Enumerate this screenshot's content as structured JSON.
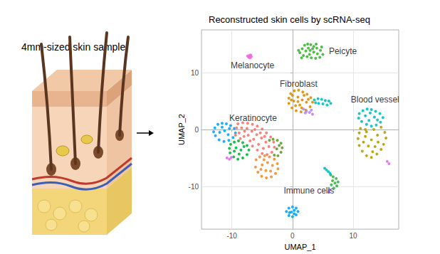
{
  "sample_label": "4mm-sized skin sample",
  "chart_data": {
    "type": "scatter",
    "title": "Reconstructed skin cells by scRNA-seq",
    "x_label": "UMAP_1",
    "y_label": "UMAP_2",
    "xlim": [
      -15,
      17.5
    ],
    "ylim": [
      -17.5,
      17.5
    ],
    "xticks": [
      -10,
      0,
      10
    ],
    "yticks": [
      -10,
      0,
      10
    ],
    "grid": true,
    "marker": "circle",
    "series": [
      {
        "color": "#3DB535",
        "values": [
          [
            1.2,
            13.5
          ],
          [
            1.6,
            14.2
          ],
          [
            2.0,
            14.8
          ],
          [
            2.5,
            15.0
          ],
          [
            3.0,
            14.9
          ],
          [
            3.5,
            14.6
          ],
          [
            4.0,
            14.3
          ],
          [
            4.6,
            13.9
          ],
          [
            5.0,
            13.2
          ],
          [
            4.5,
            12.7
          ],
          [
            3.8,
            12.5
          ],
          [
            3.1,
            12.6
          ],
          [
            2.4,
            12.8
          ],
          [
            1.8,
            13.0
          ],
          [
            2.2,
            13.8
          ],
          [
            2.9,
            13.9
          ],
          [
            3.5,
            13.6
          ],
          [
            4.1,
            13.3
          ],
          [
            2.6,
            14.3
          ],
          [
            3.3,
            14.2
          ],
          [
            1.5,
            12.6
          ],
          [
            4.8,
            14.5
          ],
          [
            3.9,
            15.0
          ],
          [
            2.8,
            13.2
          ],
          [
            1.0,
            13.9
          ]
        ]
      },
      {
        "color": "#F564E3",
        "values": [
          [
            -7.4,
            12.9
          ],
          [
            -7.1,
            13.0
          ],
          [
            -6.8,
            12.8
          ],
          [
            -7.2,
            12.7
          ],
          [
            -6.9,
            13.1
          ],
          [
            -7.0,
            12.6
          ]
        ]
      },
      {
        "color": "#D89000",
        "values": [
          [
            -0.6,
            5.5
          ],
          [
            -0.3,
            6.3
          ],
          [
            0.3,
            6.8
          ],
          [
            1.0,
            6.9
          ],
          [
            1.7,
            6.6
          ],
          [
            2.4,
            6.2
          ],
          [
            3.0,
            5.6
          ],
          [
            3.3,
            4.8
          ],
          [
            2.9,
            4.0
          ],
          [
            2.2,
            3.4
          ],
          [
            1.4,
            3.1
          ],
          [
            0.6,
            3.3
          ],
          [
            -0.1,
            3.8
          ],
          [
            -0.6,
            4.6
          ],
          [
            0.2,
            5.0
          ],
          [
            0.9,
            5.7
          ],
          [
            1.6,
            5.2
          ],
          [
            2.3,
            4.8
          ],
          [
            1.2,
            4.3
          ],
          [
            0.5,
            4.2
          ],
          [
            1.9,
            6.0
          ],
          [
            0.0,
            6.0
          ],
          [
            2.6,
            5.3
          ],
          [
            1.5,
            3.8
          ],
          [
            0.9,
            4.9
          ],
          [
            -0.2,
            5.2
          ]
        ]
      },
      {
        "color": "#00BFC4",
        "values": [
          [
            3.6,
            5.2
          ],
          [
            4.2,
            5.4
          ],
          [
            4.8,
            5.3
          ],
          [
            5.4,
            5.1
          ],
          [
            6.0,
            5.0
          ],
          [
            6.3,
            4.6
          ],
          [
            5.7,
            4.3
          ],
          [
            5.0,
            4.5
          ],
          [
            4.3,
            4.6
          ],
          [
            3.8,
            4.7
          ]
        ]
      },
      {
        "color": "#B983FF",
        "values": [
          [
            1.8,
            3.6
          ],
          [
            2.3,
            3.2
          ],
          [
            2.8,
            3.0
          ],
          [
            3.3,
            2.7
          ],
          [
            2.1,
            2.9
          ],
          [
            3.1,
            3.4
          ]
        ]
      },
      {
        "color": "#00BFC4",
        "values": [
          [
            11.0,
            2.8
          ],
          [
            11.6,
            3.3
          ],
          [
            12.3,
            3.6
          ],
          [
            13.0,
            3.5
          ],
          [
            13.7,
            3.2
          ],
          [
            14.4,
            2.8
          ],
          [
            14.9,
            2.1
          ],
          [
            14.5,
            1.3
          ],
          [
            13.8,
            0.8
          ],
          [
            13.0,
            0.6
          ],
          [
            12.2,
            0.9
          ],
          [
            11.4,
            1.4
          ],
          [
            10.9,
            2.0
          ],
          [
            12.0,
            2.4
          ],
          [
            12.8,
            2.9
          ],
          [
            13.5,
            2.2
          ],
          [
            12.6,
            1.6
          ],
          [
            14.0,
            1.7
          ]
        ]
      },
      {
        "color": "#B79F00",
        "values": [
          [
            11.2,
            0.2
          ],
          [
            12.0,
            0.0
          ],
          [
            13.4,
            0.0
          ],
          [
            14.6,
            0.4
          ],
          [
            15.2,
            -0.5
          ],
          [
            15.4,
            -1.5
          ],
          [
            15.0,
            -2.6
          ],
          [
            14.6,
            -3.5
          ],
          [
            13.9,
            -4.3
          ],
          [
            13.0,
            -4.9
          ],
          [
            12.2,
            -4.6
          ],
          [
            11.5,
            -3.8
          ],
          [
            11.0,
            -2.8
          ],
          [
            10.8,
            -1.6
          ],
          [
            11.0,
            -0.6
          ],
          [
            12.0,
            -1.2
          ],
          [
            13.0,
            -1.8
          ],
          [
            14.0,
            -1.0
          ],
          [
            12.5,
            -2.9
          ],
          [
            13.6,
            -3.0
          ],
          [
            12.2,
            -0.4
          ],
          [
            14.1,
            -2.2
          ],
          [
            11.7,
            -2.2
          ],
          [
            13.2,
            -3.9
          ]
        ]
      },
      {
        "color": "#E76BF3",
        "values": [
          [
            15.6,
            -5.6
          ],
          [
            15.9,
            -6.0
          ]
        ]
      },
      {
        "color": "#00A9FF",
        "values": [
          [
            -12.8,
            0.3
          ],
          [
            -12.3,
            0.9
          ],
          [
            -11.6,
            1.1
          ],
          [
            -10.9,
            1.0
          ],
          [
            -10.2,
            0.7
          ],
          [
            -9.6,
            0.2
          ],
          [
            -9.4,
            -0.6
          ],
          [
            -9.8,
            -1.4
          ],
          [
            -10.5,
            -1.9
          ],
          [
            -11.3,
            -2.1
          ],
          [
            -12.1,
            -1.8
          ],
          [
            -12.7,
            -1.1
          ],
          [
            -13.0,
            -0.4
          ],
          [
            -12.0,
            -0.5
          ],
          [
            -11.2,
            -0.2
          ],
          [
            -10.6,
            -0.9
          ],
          [
            -11.6,
            0.4
          ],
          [
            -10.4,
            0.2
          ]
        ]
      },
      {
        "color": "#F8766D",
        "values": [
          [
            -9.0,
            1.0
          ],
          [
            -8.2,
            1.2
          ],
          [
            -7.4,
            1.1
          ],
          [
            -6.6,
            0.9
          ],
          [
            -5.8,
            0.6
          ],
          [
            -5.0,
            0.1
          ],
          [
            -4.3,
            -0.6
          ],
          [
            -3.6,
            -1.3
          ],
          [
            -3.1,
            -2.2
          ],
          [
            -3.0,
            -3.1
          ],
          [
            -3.4,
            -4.0
          ],
          [
            -4.2,
            -4.4
          ],
          [
            -5.0,
            -4.2
          ],
          [
            -5.8,
            -3.6
          ],
          [
            -6.6,
            -2.9
          ],
          [
            -7.0,
            -2.0
          ],
          [
            -8.0,
            -1.2
          ],
          [
            -8.8,
            -0.6
          ],
          [
            -9.2,
            0.3
          ],
          [
            -8.4,
            0.3
          ],
          [
            -7.5,
            0.2
          ],
          [
            -6.7,
            -0.3
          ],
          [
            -5.9,
            -0.9
          ],
          [
            -5.1,
            -1.5
          ],
          [
            -4.4,
            -2.2
          ],
          [
            -3.9,
            -3.0
          ],
          [
            -4.8,
            -3.3
          ],
          [
            -5.6,
            -2.6
          ],
          [
            -6.4,
            -1.7
          ],
          [
            -7.3,
            -1.0
          ],
          [
            -6.2,
            0.0
          ],
          [
            -5.3,
            -0.6
          ],
          [
            -4.6,
            -1.2
          ],
          [
            -7.9,
            -0.3
          ],
          [
            -8.6,
            -1.6
          ],
          [
            -9.4,
            -1.0
          ]
        ]
      },
      {
        "color": "#00BA38",
        "values": [
          [
            -10.2,
            -2.6
          ],
          [
            -9.6,
            -2.2
          ],
          [
            -8.9,
            -2.0
          ],
          [
            -8.2,
            -2.3
          ],
          [
            -7.5,
            -2.8
          ],
          [
            -7.2,
            -3.6
          ],
          [
            -7.5,
            -4.4
          ],
          [
            -8.2,
            -5.0
          ],
          [
            -9.0,
            -5.2
          ],
          [
            -9.7,
            -4.8
          ],
          [
            -10.3,
            -4.1
          ],
          [
            -10.4,
            -3.3
          ],
          [
            -9.3,
            -3.2
          ],
          [
            -8.5,
            -3.6
          ],
          [
            -8.8,
            -4.3
          ],
          [
            -9.6,
            -3.8
          ],
          [
            -8.0,
            -3.0
          ]
        ]
      },
      {
        "color": "#F28E2B",
        "values": [
          [
            -6.0,
            -5.3
          ],
          [
            -5.4,
            -4.8
          ],
          [
            -4.6,
            -4.6
          ],
          [
            -3.8,
            -4.8
          ],
          [
            -3.0,
            -5.2
          ],
          [
            -2.5,
            -6.0
          ],
          [
            -2.4,
            -6.9
          ],
          [
            -2.8,
            -7.7
          ],
          [
            -3.5,
            -8.3
          ],
          [
            -4.3,
            -8.5
          ],
          [
            -5.1,
            -8.2
          ],
          [
            -5.7,
            -7.5
          ],
          [
            -6.1,
            -6.6
          ],
          [
            -5.0,
            -6.2
          ],
          [
            -4.1,
            -5.8
          ],
          [
            -3.3,
            -6.3
          ],
          [
            -4.4,
            -7.2
          ],
          [
            -3.6,
            -7.3
          ],
          [
            -5.2,
            -7.0
          ],
          [
            -4.7,
            -5.3
          ]
        ]
      },
      {
        "color": "#5F9E2F",
        "values": [
          [
            -3.8,
            -1.9
          ],
          [
            -3.2,
            -1.7
          ],
          [
            -2.5,
            -1.9
          ],
          [
            -1.9,
            -2.4
          ],
          [
            -1.7,
            -3.2
          ],
          [
            -1.9,
            -4.0
          ],
          [
            -2.4,
            -4.6
          ],
          [
            -3.0,
            -4.5
          ],
          [
            -2.6,
            -3.4
          ],
          [
            -2.2,
            -2.8
          ]
        ]
      },
      {
        "color": "#E76BF3",
        "values": [
          [
            -10.8,
            -5.0
          ],
          [
            -10.4,
            -5.2
          ],
          [
            -10.1,
            -4.9
          ]
        ]
      },
      {
        "color": "#39B54A",
        "values": [
          [
            6.3,
            -8.0
          ],
          [
            6.7,
            -8.3
          ],
          [
            7.2,
            -8.6
          ],
          [
            7.5,
            -9.2
          ],
          [
            7.3,
            -9.9
          ],
          [
            6.8,
            -10.3
          ],
          [
            6.4,
            -9.7
          ],
          [
            6.6,
            -9.0
          ],
          [
            7.0,
            -9.4
          ]
        ]
      },
      {
        "color": "#00BFC4",
        "values": [
          [
            5.3,
            -6.8
          ],
          [
            5.6,
            -7.1
          ],
          [
            5.9,
            -7.4
          ],
          [
            6.2,
            -7.7
          ]
        ]
      },
      {
        "color": "#E76BF3",
        "values": [
          [
            6.1,
            -10.6
          ],
          [
            6.0,
            -11.0
          ]
        ]
      },
      {
        "color": "#00A9FF",
        "values": [
          [
            -1.0,
            -14.4
          ],
          [
            -0.6,
            -13.8
          ],
          [
            0.0,
            -13.6
          ],
          [
            0.6,
            -13.8
          ],
          [
            0.9,
            -14.4
          ],
          [
            0.6,
            -15.0
          ],
          [
            0.0,
            -15.3
          ],
          [
            -0.6,
            -15.1
          ],
          [
            -0.2,
            -14.5
          ],
          [
            0.3,
            -14.2
          ],
          [
            0.3,
            -14.8
          ],
          [
            -0.5,
            -14.6
          ]
        ]
      }
    ],
    "annotations": [
      {
        "text": "Peicyte",
        "x": 8.3,
        "y": 13.7
      },
      {
        "text": "Melanocyte",
        "x": -6.6,
        "y": 11.2
      },
      {
        "text": "Fibroblast",
        "x": 1.0,
        "y": 8.0
      },
      {
        "text": "Blood vessel",
        "x": 13.6,
        "y": 5.2
      },
      {
        "text": "Keratinocyte",
        "x": -6.5,
        "y": 2.0
      },
      {
        "text": "Immune cells",
        "x": 2.7,
        "y": -10.7
      }
    ]
  }
}
